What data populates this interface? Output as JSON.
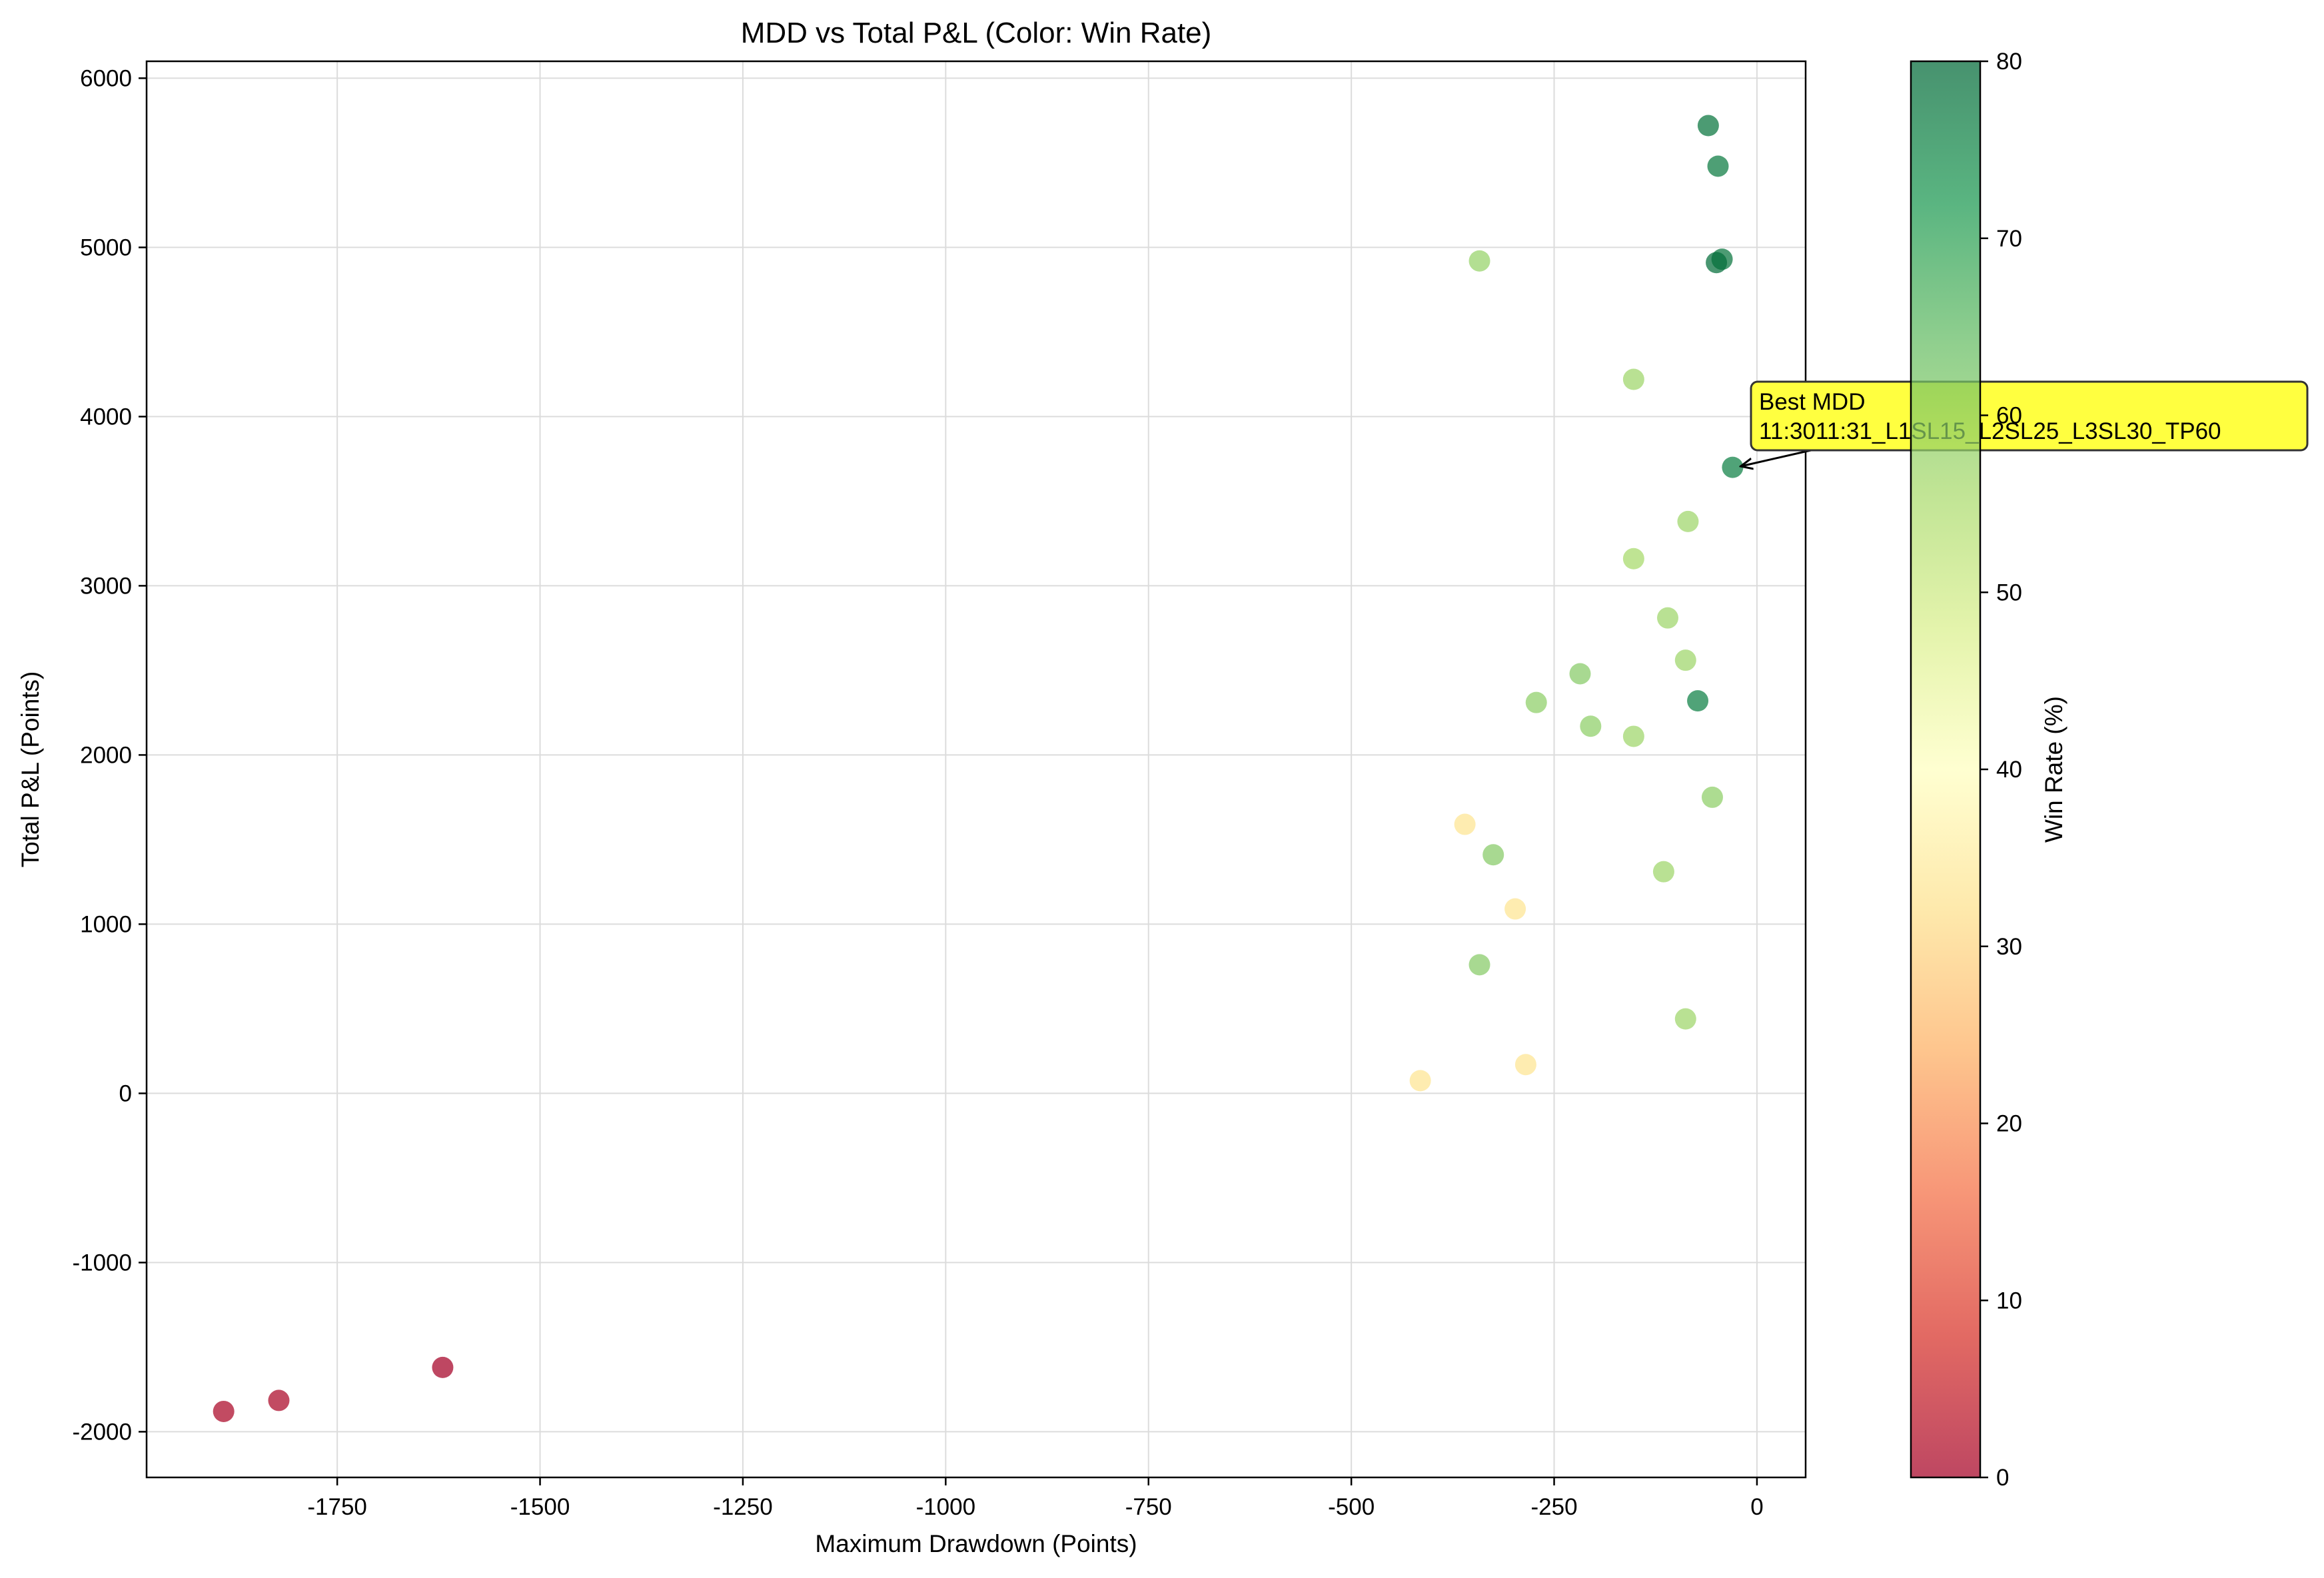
{
  "chart_data": {
    "type": "scatter",
    "title": "MDD vs Total P&L (Color: Win Rate)",
    "xlabel": "Maximum Drawdown (Points)",
    "ylabel": "Total P&L (Points)",
    "xlim": [
      -1985,
      60
    ],
    "ylim": [
      -2270,
      6100
    ],
    "xticks": [
      -1750,
      -1500,
      -1250,
      -1000,
      -750,
      -500,
      -250,
      0
    ],
    "yticks": [
      -2000,
      -1000,
      0,
      1000,
      2000,
      3000,
      4000,
      5000,
      6000
    ],
    "grid": true,
    "colorbar": {
      "label": "Win Rate (%)",
      "range": [
        0,
        80
      ],
      "ticks": [
        0,
        10,
        20,
        30,
        40,
        50,
        60,
        70,
        80
      ],
      "colormap": [
        "#a50026",
        "#d73027",
        "#f46d43",
        "#fdae61",
        "#fee08b",
        "#ffffbf",
        "#d9ef8b",
        "#a6d96a",
        "#66bd63",
        "#1a9850",
        "#006837"
      ]
    },
    "points": [
      {
        "x": -60,
        "y": 5720,
        "win_rate": 78
      },
      {
        "x": -48,
        "y": 5480,
        "win_rate": 77
      },
      {
        "x": -43,
        "y": 4930,
        "win_rate": 78
      },
      {
        "x": -50,
        "y": 4910,
        "win_rate": 79
      },
      {
        "x": -342,
        "y": 4920,
        "win_rate": 58
      },
      {
        "x": -152,
        "y": 4220,
        "win_rate": 57
      },
      {
        "x": -30,
        "y": 3700,
        "win_rate": 76
      },
      {
        "x": -85,
        "y": 3380,
        "win_rate": 57
      },
      {
        "x": -152,
        "y": 3160,
        "win_rate": 56
      },
      {
        "x": -110,
        "y": 2810,
        "win_rate": 57
      },
      {
        "x": -88,
        "y": 2560,
        "win_rate": 57
      },
      {
        "x": -218,
        "y": 2480,
        "win_rate": 60
      },
      {
        "x": -73,
        "y": 2320,
        "win_rate": 76
      },
      {
        "x": -272,
        "y": 2310,
        "win_rate": 59
      },
      {
        "x": -205,
        "y": 2170,
        "win_rate": 59
      },
      {
        "x": -152,
        "y": 2110,
        "win_rate": 57
      },
      {
        "x": -55,
        "y": 1750,
        "win_rate": 59
      },
      {
        "x": -360,
        "y": 1590,
        "win_rate": 33
      },
      {
        "x": -325,
        "y": 1410,
        "win_rate": 60
      },
      {
        "x": -115,
        "y": 1310,
        "win_rate": 57
      },
      {
        "x": -298,
        "y": 1090,
        "win_rate": 33
      },
      {
        "x": -342,
        "y": 760,
        "win_rate": 60
      },
      {
        "x": -88,
        "y": 440,
        "win_rate": 57
      },
      {
        "x": -285,
        "y": 170,
        "win_rate": 33
      },
      {
        "x": -415,
        "y": 75,
        "win_rate": 33
      },
      {
        "x": -1620,
        "y": -1620,
        "win_rate": 0
      },
      {
        "x": -1822,
        "y": -1815,
        "win_rate": 1
      },
      {
        "x": -1890,
        "y": -1880,
        "win_rate": 1
      }
    ],
    "annotation": {
      "lines": [
        "Best MDD",
        "11:3011:31_L1SL15_L2SL25_L3SL30_TP60"
      ],
      "target": {
        "x": -30,
        "y": 3700
      },
      "box_color": "#ffff40"
    }
  }
}
